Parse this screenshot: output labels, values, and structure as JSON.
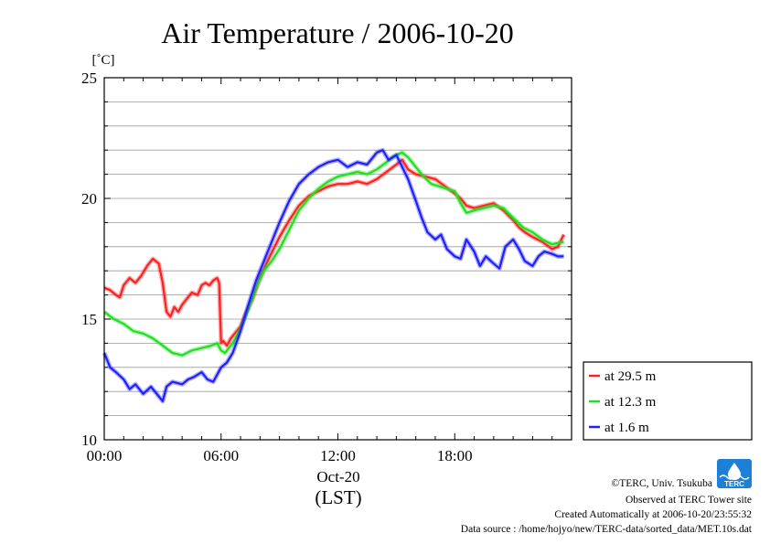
{
  "chart_data": {
    "type": "line",
    "title": "Air Temperature / 2006-10-20",
    "ylabel": "[˚C]",
    "xlabel": "(LST)",
    "date_label": "Oct-20",
    "ylim": [
      10,
      25
    ],
    "yticks": [
      10,
      15,
      20,
      25
    ],
    "xlim": [
      0,
      24
    ],
    "xticks": [
      0,
      6,
      12,
      18
    ],
    "xtick_labels": [
      "00:00",
      "06:00",
      "12:00",
      "18:00"
    ],
    "grid": true,
    "legend_position": "right",
    "series": [
      {
        "name": "at 29.5 m",
        "color": "#ff2020",
        "x": [
          0,
          0.3,
          0.6,
          0.8,
          1.0,
          1.3,
          1.6,
          1.9,
          2.2,
          2.5,
          2.8,
          3.0,
          3.2,
          3.4,
          3.6,
          3.8,
          4.0,
          4.2,
          4.5,
          4.8,
          5.0,
          5.2,
          5.4,
          5.6,
          5.8,
          5.9,
          6.0,
          6.1,
          6.3,
          6.5,
          6.8,
          7.0,
          7.3,
          7.6,
          8.0,
          8.5,
          9.0,
          9.5,
          10.0,
          10.5,
          11.0,
          11.5,
          12.0,
          12.5,
          13.0,
          13.5,
          14.0,
          14.5,
          15.0,
          15.3,
          15.6,
          16.0,
          16.5,
          17.0,
          17.5,
          18.0,
          18.3,
          18.6,
          19.0,
          19.5,
          20.0,
          20.5,
          21.0,
          21.3,
          21.6,
          22.0,
          22.5,
          23.0,
          23.3,
          23.6
        ],
        "y": [
          16.3,
          16.2,
          16.0,
          15.9,
          16.4,
          16.7,
          16.5,
          16.8,
          17.2,
          17.5,
          17.3,
          16.5,
          15.3,
          15.1,
          15.5,
          15.3,
          15.6,
          15.8,
          16.1,
          16.0,
          16.4,
          16.5,
          16.4,
          16.6,
          16.7,
          16.5,
          14.0,
          14.1,
          13.9,
          14.2,
          14.5,
          14.7,
          15.3,
          15.8,
          16.7,
          17.6,
          18.4,
          19.1,
          19.7,
          20.1,
          20.3,
          20.5,
          20.6,
          20.6,
          20.7,
          20.6,
          20.8,
          21.1,
          21.4,
          21.6,
          21.2,
          21.0,
          20.9,
          20.8,
          20.5,
          20.2,
          20.0,
          19.7,
          19.6,
          19.7,
          19.8,
          19.5,
          19.1,
          18.8,
          18.6,
          18.4,
          18.2,
          17.9,
          18.0,
          18.5
        ]
      },
      {
        "name": "at 12.3 m",
        "color": "#20e020",
        "x": [
          0,
          0.5,
          1.0,
          1.5,
          2.0,
          2.5,
          3.0,
          3.5,
          4.0,
          4.5,
          5.0,
          5.5,
          5.8,
          6.0,
          6.2,
          6.6,
          7.0,
          7.4,
          7.8,
          8.2,
          8.6,
          9.0,
          9.5,
          10.0,
          10.5,
          11.0,
          11.5,
          12.0,
          12.5,
          13.0,
          13.5,
          14.0,
          14.5,
          15.0,
          15.3,
          15.6,
          16.0,
          16.4,
          16.8,
          17.2,
          17.6,
          18.0,
          18.3,
          18.6,
          19.0,
          19.5,
          20.0,
          20.5,
          21.0,
          21.5,
          22.0,
          22.5,
          23.0,
          23.6
        ],
        "y": [
          15.3,
          15.0,
          14.8,
          14.5,
          14.4,
          14.2,
          13.9,
          13.6,
          13.5,
          13.7,
          13.8,
          13.9,
          14.0,
          13.7,
          13.6,
          14.0,
          14.6,
          15.4,
          16.3,
          17.0,
          17.4,
          17.9,
          18.7,
          19.5,
          20.0,
          20.4,
          20.7,
          20.9,
          21.0,
          21.1,
          21.0,
          21.2,
          21.5,
          21.8,
          21.9,
          21.7,
          21.3,
          20.9,
          20.6,
          20.5,
          20.4,
          20.3,
          19.8,
          19.4,
          19.5,
          19.6,
          19.7,
          19.6,
          19.2,
          18.8,
          18.6,
          18.3,
          18.1,
          18.2
        ]
      },
      {
        "name": "at 1.6 m",
        "color": "#2020ff",
        "x": [
          0,
          0.3,
          0.6,
          1.0,
          1.3,
          1.6,
          2.0,
          2.4,
          2.8,
          3.0,
          3.2,
          3.5,
          4.0,
          4.3,
          4.6,
          5.0,
          5.3,
          5.6,
          6.0,
          6.3,
          6.6,
          7.0,
          7.4,
          7.8,
          8.2,
          8.6,
          9.0,
          9.5,
          10.0,
          10.5,
          11.0,
          11.5,
          12.0,
          12.5,
          13.0,
          13.5,
          14.0,
          14.3,
          14.6,
          15.0,
          15.3,
          15.6,
          16.0,
          16.3,
          16.6,
          17.0,
          17.3,
          17.6,
          18.0,
          18.3,
          18.6,
          19.0,
          19.3,
          19.6,
          20.0,
          20.3,
          20.6,
          21.0,
          21.3,
          21.6,
          22.0,
          22.3,
          22.6,
          23.0,
          23.3,
          23.6
        ],
        "y": [
          13.6,
          13.0,
          12.8,
          12.5,
          12.1,
          12.3,
          11.9,
          12.2,
          11.8,
          11.6,
          12.2,
          12.4,
          12.3,
          12.5,
          12.6,
          12.8,
          12.5,
          12.4,
          13.0,
          13.2,
          13.6,
          14.5,
          15.6,
          16.6,
          17.4,
          18.2,
          19.0,
          19.9,
          20.6,
          21.0,
          21.3,
          21.5,
          21.6,
          21.3,
          21.5,
          21.4,
          21.9,
          22.0,
          21.6,
          21.8,
          21.3,
          20.8,
          19.9,
          19.2,
          18.6,
          18.3,
          18.5,
          17.9,
          17.6,
          17.5,
          18.3,
          17.8,
          17.2,
          17.6,
          17.3,
          17.1,
          18.0,
          18.3,
          17.9,
          17.4,
          17.2,
          17.6,
          17.8,
          17.7,
          17.6,
          17.6
        ]
      }
    ]
  },
  "credits": {
    "line1": "©TERC, Univ. Tsukuba",
    "line2": "Observed at TERC Tower site",
    "line3": "Created Automatically at 2006-10-20/23:55:32",
    "line4": "Data source : /home/hojyo/new/TERC-data/sorted_data/MET.10s.dat"
  },
  "logo": {
    "text": "TERC",
    "color": "#1e7fd6"
  }
}
